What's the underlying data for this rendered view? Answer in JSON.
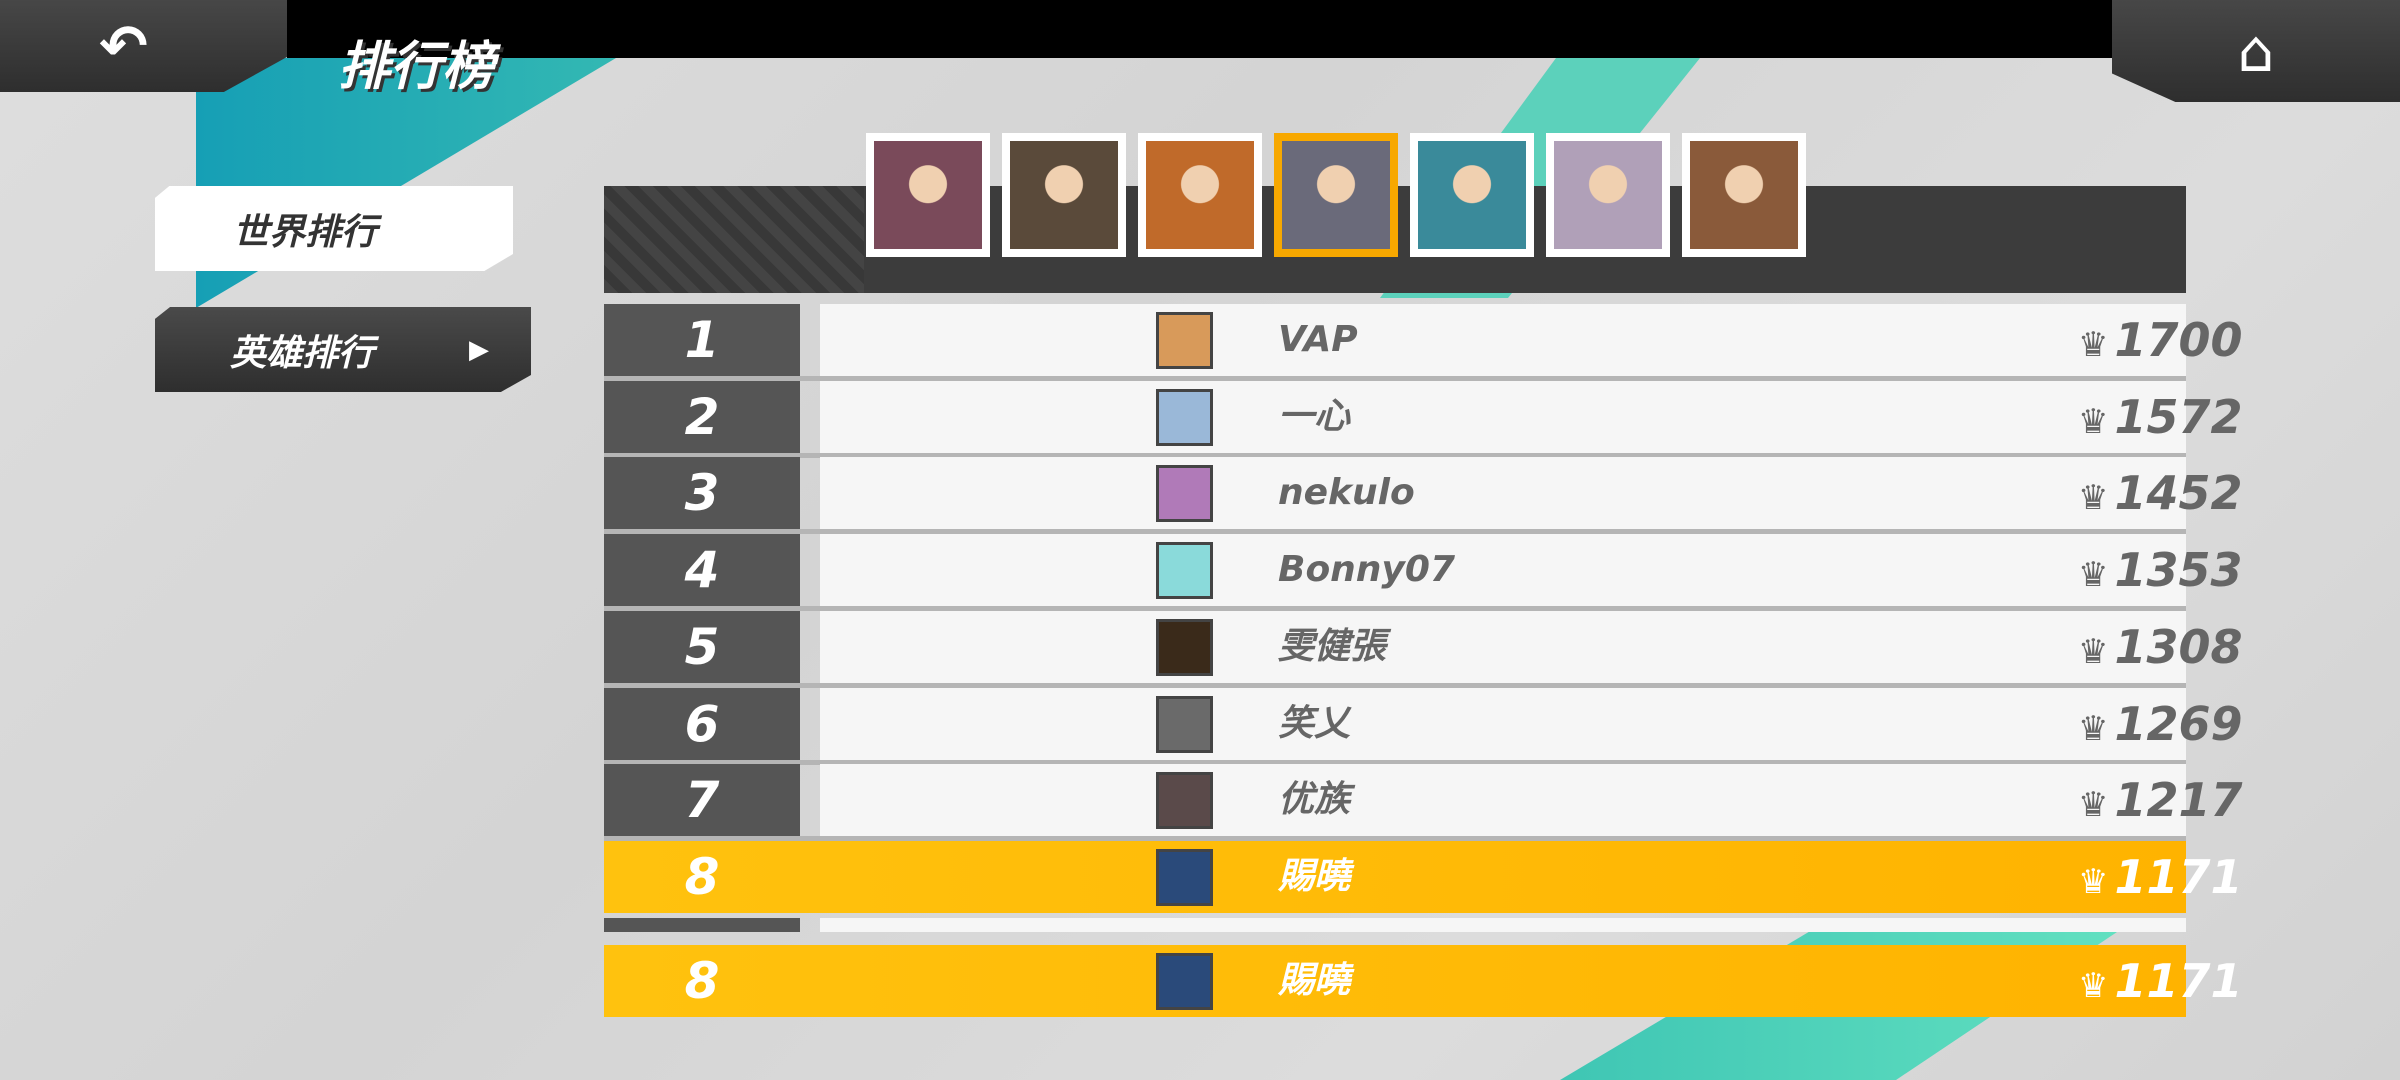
{
  "header": {
    "title": "排行榜",
    "back_icon": "undo-arrow-icon",
    "home_icon": "home-icon"
  },
  "tabs": [
    {
      "label": "世界排行",
      "selected": false
    },
    {
      "label": "英雄排行",
      "selected": true,
      "arrow": "▶"
    }
  ],
  "heroes": [
    {
      "name": "hero-1",
      "color": "#7a4a5a"
    },
    {
      "name": "hero-2",
      "color": "#5a4a3a"
    },
    {
      "name": "hero-3",
      "color": "#c06a2a"
    },
    {
      "name": "hero-4",
      "color": "#6a6a7a",
      "selected": true
    },
    {
      "name": "hero-5",
      "color": "#3a8a9a"
    },
    {
      "name": "hero-6",
      "color": "#b0a0b8"
    },
    {
      "name": "hero-7",
      "color": "#8a5a3a"
    }
  ],
  "colors": {
    "accent": "#ffb300",
    "teal": "#1fa9b5",
    "rank_bg": "#555555"
  },
  "rows": [
    {
      "rank": "1",
      "name": "VAP",
      "score": "1700",
      "avatar": "#d89a5a"
    },
    {
      "rank": "2",
      "name": "一心",
      "score": "1572",
      "avatar": "#9ab8d8"
    },
    {
      "rank": "3",
      "name": "nekulo",
      "score": "1452",
      "avatar": "#b07ab8"
    },
    {
      "rank": "4",
      "name": "Bonny07",
      "score": "1353",
      "avatar": "#8adada"
    },
    {
      "rank": "5",
      "name": "雯健張",
      "score": "1308",
      "avatar": "#3a2a1a"
    },
    {
      "rank": "6",
      "name": "笑乂",
      "score": "1269",
      "avatar": "#6a6a6a"
    },
    {
      "rank": "7",
      "name": "优族",
      "score": "1217",
      "avatar": "#5a4a4a"
    },
    {
      "rank": "8",
      "name": "賜曉",
      "score": "1171",
      "avatar": "#2a4a7a",
      "self": true
    }
  ],
  "self_row": {
    "rank": "8",
    "name": "賜曉",
    "score": "1171",
    "avatar": "#2a4a7a"
  },
  "trophy_icon": "♛"
}
